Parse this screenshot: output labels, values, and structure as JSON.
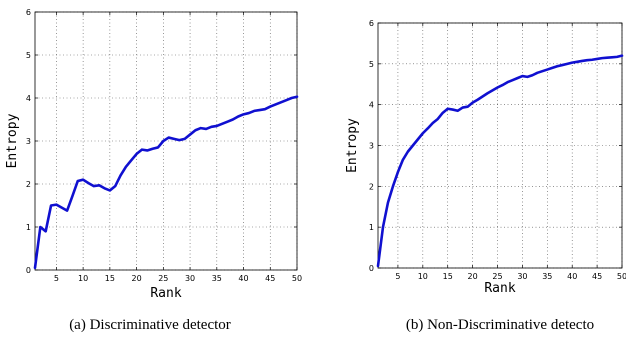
{
  "chart_data": [
    {
      "type": "line",
      "caption": "(a)  Discriminative detector",
      "xlabel": "Rank",
      "ylabel": "Entropy",
      "xlim": [
        1,
        50
      ],
      "ylim": [
        0,
        6
      ],
      "xticks": [
        5,
        10,
        15,
        20,
        25,
        30,
        35,
        40,
        45,
        50
      ],
      "yticks": [
        0,
        1,
        2,
        3,
        4,
        5,
        6
      ],
      "grid": true,
      "line_color": "#1010d0",
      "series": [
        {
          "x": [
            1,
            2,
            3,
            4,
            5,
            6,
            7,
            8,
            9,
            10,
            11,
            12,
            13,
            14,
            15,
            16,
            17,
            18,
            19,
            20,
            21,
            22,
            23,
            24,
            25,
            26,
            27,
            28,
            29,
            30,
            31,
            32,
            33,
            34,
            35,
            36,
            37,
            38,
            39,
            40,
            41,
            42,
            43,
            44,
            45,
            46,
            47,
            48,
            49,
            50
          ],
          "y": [
            0.05,
            1.0,
            0.9,
            1.5,
            1.52,
            1.45,
            1.38,
            1.72,
            2.07,
            2.1,
            2.02,
            1.95,
            1.97,
            1.9,
            1.85,
            1.95,
            2.2,
            2.4,
            2.55,
            2.7,
            2.8,
            2.78,
            2.82,
            2.85,
            3.0,
            3.08,
            3.05,
            3.02,
            3.05,
            3.15,
            3.25,
            3.3,
            3.28,
            3.33,
            3.35,
            3.4,
            3.45,
            3.5,
            3.57,
            3.62,
            3.65,
            3.7,
            3.72,
            3.74,
            3.8,
            3.85,
            3.9,
            3.95,
            4.0,
            4.03
          ]
        }
      ]
    },
    {
      "type": "line",
      "caption": "(b)  Non-Discriminative detecto",
      "xlabel": "Rank",
      "ylabel": "Entropy",
      "xlim": [
        1,
        50
      ],
      "ylim": [
        0,
        6
      ],
      "xticks": [
        5,
        10,
        15,
        20,
        25,
        30,
        35,
        40,
        45,
        50
      ],
      "yticks": [
        0,
        1,
        2,
        3,
        4,
        5,
        6
      ],
      "grid": true,
      "line_color": "#1010d0",
      "series": [
        {
          "x": [
            1,
            2,
            3,
            4,
            5,
            6,
            7,
            8,
            9,
            10,
            11,
            12,
            13,
            14,
            15,
            16,
            17,
            18,
            19,
            20,
            21,
            22,
            23,
            24,
            25,
            26,
            27,
            28,
            29,
            30,
            31,
            32,
            33,
            34,
            35,
            36,
            37,
            38,
            39,
            40,
            41,
            42,
            43,
            44,
            45,
            46,
            47,
            48,
            49,
            50
          ],
          "y": [
            0.05,
            1.0,
            1.6,
            2.0,
            2.35,
            2.65,
            2.85,
            3.0,
            3.15,
            3.3,
            3.42,
            3.55,
            3.65,
            3.8,
            3.9,
            3.88,
            3.85,
            3.93,
            3.95,
            4.05,
            4.12,
            4.2,
            4.28,
            4.35,
            4.42,
            4.48,
            4.55,
            4.6,
            4.65,
            4.7,
            4.68,
            4.72,
            4.78,
            4.82,
            4.86,
            4.9,
            4.94,
            4.97,
            5.0,
            5.03,
            5.05,
            5.07,
            5.09,
            5.1,
            5.12,
            5.14,
            5.15,
            5.16,
            5.17,
            5.2
          ]
        }
      ]
    }
  ]
}
